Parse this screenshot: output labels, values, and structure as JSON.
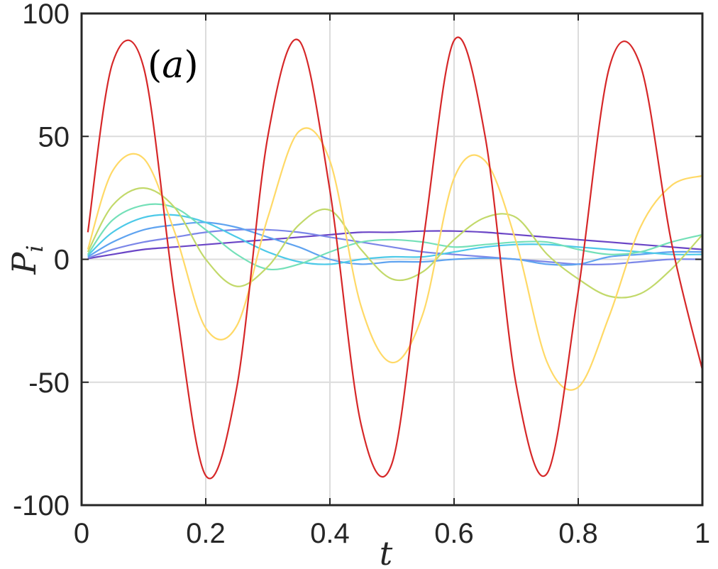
{
  "chart_data": {
    "type": "line",
    "panel_label": "(a)",
    "panel_label_italic": "a",
    "xlabel": "t",
    "ylabel": "P",
    "ylabel_subscript": "i",
    "xlim": [
      0,
      1
    ],
    "ylim": [
      -100,
      100
    ],
    "xticks": [
      0,
      0.2,
      0.4,
      0.6,
      0.8,
      1
    ],
    "xtick_labels": [
      "0",
      "0.2",
      "0.4",
      "0.6",
      "0.8",
      "1"
    ],
    "yticks": [
      -100,
      -50,
      0,
      50,
      100
    ],
    "ytick_labels": [
      "-100",
      "-50",
      "0",
      "50",
      "100"
    ],
    "grid": true,
    "x": [
      0.01,
      0.05,
      0.1,
      0.15,
      0.2,
      0.25,
      0.3,
      0.35,
      0.4,
      0.45,
      0.5,
      0.55,
      0.6,
      0.65,
      0.7,
      0.75,
      0.8,
      0.85,
      0.9,
      0.95,
      1.0
    ],
    "series": [
      {
        "color": "#d62728",
        "values": [
          11,
          80,
          78,
          -15,
          -88,
          -52,
          50,
          89,
          28,
          -67,
          -83,
          7,
          89,
          50,
          -51,
          -87,
          -13,
          78,
          79,
          7,
          -45
        ]
      },
      {
        "color": "#ffd966",
        "values": [
          4,
          36,
          41,
          11,
          -28,
          -27,
          17,
          52,
          40,
          -19,
          -42,
          -22,
          33,
          40,
          7,
          -42,
          -52,
          -23,
          13,
          30,
          34
        ]
      },
      {
        "color": "#c2d96a",
        "values": [
          3,
          22,
          29,
          21,
          0,
          -11,
          -3,
          14,
          20,
          4,
          -8,
          -5,
          8,
          17,
          17,
          2,
          -8,
          -15,
          -14,
          -4,
          10
        ]
      },
      {
        "color": "#74e0b8",
        "values": [
          2,
          16,
          22,
          21,
          12,
          2,
          -4,
          -2,
          3,
          7,
          8,
          7,
          5,
          6,
          7,
          7,
          4,
          2,
          3,
          7,
          10
        ]
      },
      {
        "color": "#4cc9e8",
        "values": [
          1.5,
          11,
          17,
          18,
          15,
          9,
          3,
          -1,
          -2,
          0,
          1,
          1,
          3,
          5,
          6,
          6,
          5,
          4,
          3,
          2,
          2
        ]
      },
      {
        "color": "#5fa3f0",
        "values": [
          1,
          7,
          12,
          14,
          15,
          13,
          9,
          5,
          0,
          -2,
          -1,
          -1,
          0,
          0.5,
          0,
          -2,
          -2,
          1,
          2,
          3,
          3
        ]
      },
      {
        "color": "#7b86e8",
        "values": [
          0.5,
          4,
          7,
          9,
          11,
          12,
          12,
          11,
          9,
          7,
          5,
          3,
          2,
          1,
          0,
          -1,
          -2,
          -2,
          -1,
          0,
          0
        ]
      },
      {
        "color": "#6a45c6",
        "values": [
          0.3,
          2,
          4,
          5,
          6,
          7,
          8,
          9,
          10,
          11,
          11,
          11.5,
          11.5,
          11,
          10,
          9,
          8,
          7,
          6,
          5,
          4
        ]
      }
    ]
  }
}
